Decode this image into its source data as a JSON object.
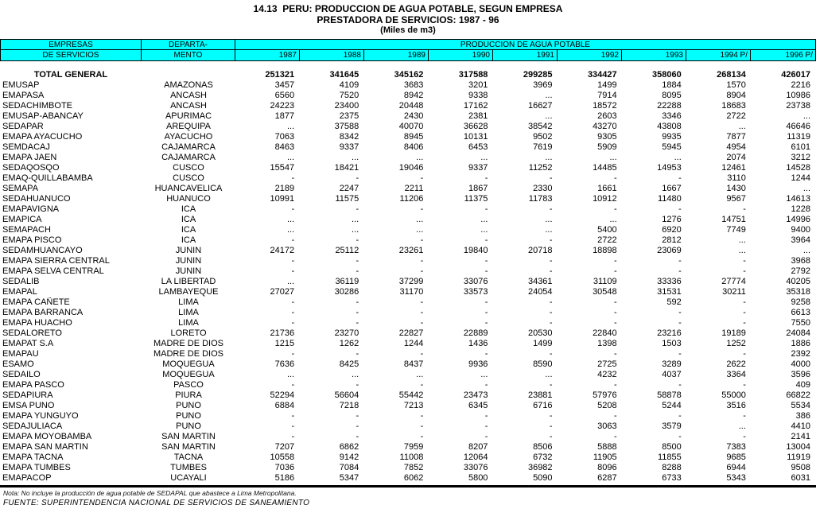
{
  "title": {
    "line1": "14.13  PERU: PRODUCCION DE AGUA POTABLE, SEGUN EMPRESA",
    "line2": "PRESTADORA DE SERVICIOS: 1987 - 96",
    "line3": "(Miles de m3)"
  },
  "colors": {
    "header_bg": "#00FFFF",
    "border": "#000000"
  },
  "table": {
    "header": {
      "col1_line1": "EMPRESAS",
      "col1_line2": "DE SERVICIOS",
      "col2_line1": "DEPARTA-",
      "col2_line2": "MENTO",
      "group": "PRODUCCION DE AGUA POTABLE",
      "years": [
        "1987",
        "1988",
        "1989",
        "1990",
        "1991",
        "1992",
        "1993",
        "1994 P/",
        "1996 P/"
      ]
    },
    "total_row": {
      "label": "TOTAL GENERAL",
      "values": [
        "251321",
        "341645",
        "345162",
        "317588",
        "299285",
        "334427",
        "358060",
        "268134",
        "426017"
      ]
    },
    "rows": [
      {
        "empresa": "EMUSAP",
        "departamento": "AMAZONAS",
        "values": [
          "3457",
          "4109",
          "3683",
          "3201",
          "3969",
          "1499",
          "1884",
          "1570",
          "2216"
        ]
      },
      {
        "empresa": "EMAPASA",
        "departamento": "ANCASH",
        "values": [
          "6560",
          "7520",
          "8942",
          "9338",
          "...",
          "7914",
          "8095",
          "8904",
          "10986"
        ]
      },
      {
        "empresa": "SEDACHIMBOTE",
        "departamento": "ANCASH",
        "values": [
          "24223",
          "23400",
          "20448",
          "17162",
          "16627",
          "18572",
          "22288",
          "18683",
          "23738"
        ]
      },
      {
        "empresa": "EMUSAP-ABANCAY",
        "departamento": "APURIMAC",
        "values": [
          "1877",
          "2375",
          "2430",
          "2381",
          "...",
          "2603",
          "3346",
          "2722",
          "..."
        ]
      },
      {
        "empresa": "SEDAPAR",
        "departamento": "AREQUIPA",
        "values": [
          "...",
          "37588",
          "40070",
          "36628",
          "38542",
          "43270",
          "43808",
          "...",
          "46646"
        ]
      },
      {
        "empresa": "EMAPA AYACUCHO",
        "departamento": "AYACUCHO",
        "values": [
          "7063",
          "8342",
          "8945",
          "10131",
          "9502",
          "9305",
          "9935",
          "7877",
          "11319"
        ]
      },
      {
        "empresa": "SEMDACAJ",
        "departamento": "CAJAMARCA",
        "values": [
          "8463",
          "9337",
          "8406",
          "6453",
          "7619",
          "5909",
          "5945",
          "4954",
          "6101"
        ]
      },
      {
        "empresa": "EMAPA JAEN",
        "departamento": "CAJAMARCA",
        "values": [
          "...",
          "...",
          "...",
          "...",
          "...",
          "...",
          "...",
          "2074",
          "3212"
        ]
      },
      {
        "empresa": "SEDAQOSQO",
        "departamento": "CUSCO",
        "values": [
          "15547",
          "18421",
          "19046",
          "9337",
          "11252",
          "14485",
          "14953",
          "12461",
          "14528"
        ]
      },
      {
        "empresa": "EMAQ-QUILLABAMBA",
        "departamento": "CUSCO",
        "values": [
          "-",
          "-",
          "-",
          "-",
          "-",
          "-",
          "-",
          "3110",
          "1244"
        ]
      },
      {
        "empresa": "SEMAPA",
        "departamento": "HUANCAVELICA",
        "values": [
          "2189",
          "2247",
          "2211",
          "1867",
          "2330",
          "1661",
          "1667",
          "1430",
          "..."
        ]
      },
      {
        "empresa": "SEDAHUANUCO",
        "departamento": "HUANUCO",
        "values": [
          "10991",
          "11575",
          "11206",
          "11375",
          "11783",
          "10912",
          "11480",
          "9567",
          "14613"
        ]
      },
      {
        "empresa": "EMAPAVIGNA",
        "departamento": "ICA",
        "values": [
          "-",
          "-",
          "-",
          "-",
          "-",
          "-",
          "-",
          "-",
          "1228"
        ]
      },
      {
        "empresa": "EMAPICA",
        "departamento": "ICA",
        "values": [
          "...",
          "...",
          "...",
          "...",
          "...",
          "...",
          "1276",
          "14751",
          "14996"
        ]
      },
      {
        "empresa": "SEMAPACH",
        "departamento": "ICA",
        "values": [
          "...",
          "...",
          "...",
          "...",
          "...",
          "5400",
          "6920",
          "7749",
          "9400"
        ]
      },
      {
        "empresa": "EMAPA PISCO",
        "departamento": "ICA",
        "values": [
          "-",
          "-",
          "-",
          "-",
          "-",
          "2722",
          "2812",
          "...",
          "3964"
        ]
      },
      {
        "empresa": "SEDAMHUANCAYO",
        "departamento": "JUNIN",
        "values": [
          "24172",
          "25112",
          "23261",
          "19840",
          "20718",
          "18898",
          "23069",
          "...",
          "..."
        ]
      },
      {
        "empresa": "EMAPA SIERRA CENTRAL",
        "departamento": "JUNIN",
        "values": [
          "-",
          "-",
          "-",
          "-",
          "-",
          "-",
          "-",
          "-",
          "3968"
        ]
      },
      {
        "empresa": "EMAPA SELVA CENTRAL",
        "departamento": "JUNIN",
        "values": [
          "-",
          "-",
          "-",
          "-",
          "-",
          "-",
          "-",
          "-",
          "2792"
        ]
      },
      {
        "empresa": "SEDALIB",
        "departamento": "LA LIBERTAD",
        "values": [
          "...",
          "36119",
          "37299",
          "33076",
          "34361",
          "31109",
          "33336",
          "27774",
          "40205"
        ]
      },
      {
        "empresa": "EMAPAL",
        "departamento": "LAMBAYEQUE",
        "values": [
          "27027",
          "30286",
          "31170",
          "33573",
          "24054",
          "30548",
          "31531",
          "30211",
          "35318"
        ]
      },
      {
        "empresa": "EMAPA CAÑETE",
        "departamento": "LIMA",
        "values": [
          "-",
          "-",
          "-",
          "-",
          "-",
          "-",
          "592",
          "-",
          "9258"
        ]
      },
      {
        "empresa": "EMAPA BARRANCA",
        "departamento": "LIMA",
        "values": [
          "-",
          "-",
          "-",
          "-",
          "-",
          "-",
          "-",
          "-",
          "6613"
        ]
      },
      {
        "empresa": "EMAPA HUACHO",
        "departamento": "LIMA",
        "values": [
          "-",
          "-",
          "-",
          "-",
          "-",
          "-",
          "-",
          "-",
          "7550"
        ]
      },
      {
        "empresa": "SEDALORETO",
        "departamento": "LORETO",
        "values": [
          "21736",
          "23270",
          "22827",
          "22889",
          "20530",
          "22840",
          "23216",
          "19189",
          "24084"
        ]
      },
      {
        "empresa": "EMAPAT S.A",
        "departamento": "MADRE DE DIOS",
        "values": [
          "1215",
          "1262",
          "1244",
          "1436",
          "1499",
          "1398",
          "1503",
          "1252",
          "1886"
        ]
      },
      {
        "empresa": "EMAPAU",
        "departamento": "MADRE DE DIOS",
        "values": [
          "-",
          "-",
          "-",
          "-",
          "-",
          "-",
          "-",
          "-",
          "2392"
        ]
      },
      {
        "empresa": "ESAMO",
        "departamento": "MOQUEGUA",
        "values": [
          "7636",
          "8425",
          "8437",
          "9936",
          "8590",
          "2725",
          "3289",
          "2622",
          "4000"
        ]
      },
      {
        "empresa": "SEDAILO",
        "departamento": "MOQUEGUA",
        "values": [
          "...",
          "...",
          "...",
          "...",
          "...",
          "4232",
          "4037",
          "3364",
          "3596"
        ]
      },
      {
        "empresa": "EMAPA PASCO",
        "departamento": "PASCO",
        "values": [
          "-",
          "-",
          "-",
          "-",
          "-",
          "-",
          "-",
          "-",
          "409"
        ]
      },
      {
        "empresa": "SEDAPIURA",
        "departamento": "PIURA",
        "values": [
          "52294",
          "56604",
          "55442",
          "23473",
          "23881",
          "57976",
          "58878",
          "55000",
          "66822"
        ]
      },
      {
        "empresa": "EMSA PUNO",
        "departamento": "PUNO",
        "values": [
          "6884",
          "7218",
          "7213",
          "6345",
          "6716",
          "5208",
          "5244",
          "3516",
          "5534"
        ]
      },
      {
        "empresa": "EMAPA YUNGUYO",
        "departamento": "PUNO",
        "values": [
          "-",
          "-",
          "-",
          "-",
          "-",
          "-",
          "-",
          "-",
          "386"
        ]
      },
      {
        "empresa": "SEDAJULIACA",
        "departamento": "PUNO",
        "values": [
          "-",
          "-",
          "-",
          "-",
          "-",
          "3063",
          "3579",
          "...",
          "4410"
        ]
      },
      {
        "empresa": "EMAPA MOYOBAMBA",
        "departamento": "SAN MARTIN",
        "values": [
          "-",
          "-",
          "-",
          "-",
          "-",
          "-",
          "-",
          "-",
          "2141"
        ]
      },
      {
        "empresa": "EMAPA SAN MARTIN",
        "departamento": "SAN MARTIN",
        "values": [
          "7207",
          "6862",
          "7959",
          "8207",
          "8506",
          "5888",
          "8500",
          "7383",
          "13004"
        ]
      },
      {
        "empresa": "EMAPA TACNA",
        "departamento": "TACNA",
        "values": [
          "10558",
          "9142",
          "11008",
          "12064",
          "6732",
          "11905",
          "11855",
          "9685",
          "11919"
        ]
      },
      {
        "empresa": "EMAPA TUMBES",
        "departamento": "TUMBES",
        "values": [
          "7036",
          "7084",
          "7852",
          "33076",
          "36982",
          "8096",
          "8288",
          "6944",
          "9508"
        ]
      },
      {
        "empresa": "EMAPACOP",
        "departamento": "UCAYALI",
        "values": [
          "5186",
          "5347",
          "6062",
          "5800",
          "5090",
          "6287",
          "6733",
          "5343",
          "6031"
        ]
      }
    ]
  },
  "footer": {
    "nota": "Nota: No incluye la producción de agua potable de SEDAPAL que abastece a Lima Metropolitana.",
    "fuente": "FUENTE: SUPERINTENDENCIA NACIONAL DE SERVICIOS DE SANEAMIENTO"
  }
}
